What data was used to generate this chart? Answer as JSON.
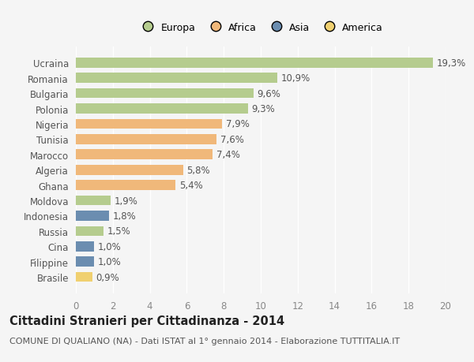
{
  "countries": [
    "Ucraina",
    "Romania",
    "Bulgaria",
    "Polonia",
    "Nigeria",
    "Tunisia",
    "Marocco",
    "Algeria",
    "Ghana",
    "Moldova",
    "Indonesia",
    "Russia",
    "Cina",
    "Filippine",
    "Brasile"
  ],
  "values": [
    19.3,
    10.9,
    9.6,
    9.3,
    7.9,
    7.6,
    7.4,
    5.8,
    5.4,
    1.9,
    1.8,
    1.5,
    1.0,
    1.0,
    0.9
  ],
  "labels": [
    "19,3%",
    "10,9%",
    "9,6%",
    "9,3%",
    "7,9%",
    "7,6%",
    "7,4%",
    "5,8%",
    "5,4%",
    "1,9%",
    "1,8%",
    "1,5%",
    "1,0%",
    "1,0%",
    "0,9%"
  ],
  "continents": [
    "Europa",
    "Europa",
    "Europa",
    "Europa",
    "Africa",
    "Africa",
    "Africa",
    "Africa",
    "Africa",
    "Europa",
    "Asia",
    "Europa",
    "Asia",
    "Asia",
    "America"
  ],
  "colors": {
    "Europa": "#b5cc8e",
    "Africa": "#f0b87a",
    "Asia": "#6b8db0",
    "America": "#f0d070"
  },
  "xlim": [
    0,
    20
  ],
  "xticks": [
    0,
    2,
    4,
    6,
    8,
    10,
    12,
    14,
    16,
    18,
    20
  ],
  "background_color": "#f5f5f5",
  "grid_color": "#ffffff",
  "title": "Cittadini Stranieri per Cittadinanza - 2014",
  "subtitle": "COMUNE DI QUALIANO (NA) - Dati ISTAT al 1° gennaio 2014 - Elaborazione TUTTITALIA.IT",
  "bar_height": 0.65,
  "label_fontsize": 8.5,
  "tick_fontsize": 8.5,
  "title_fontsize": 10.5,
  "subtitle_fontsize": 8,
  "legend_order": [
    "Europa",
    "Africa",
    "Asia",
    "America"
  ]
}
